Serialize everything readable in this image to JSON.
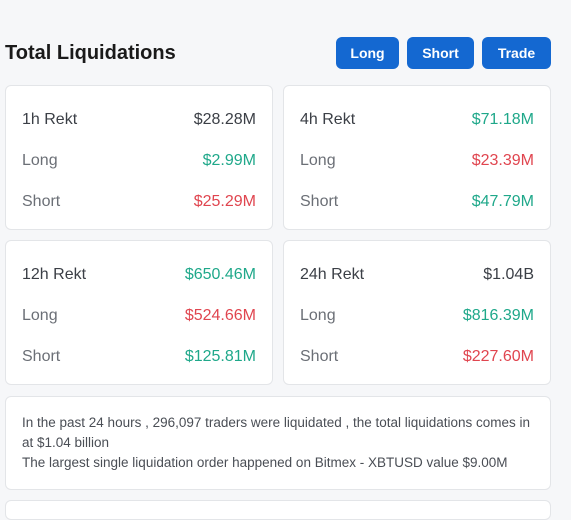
{
  "header": {
    "title": "Total Liquidations",
    "buttons": {
      "long": "Long",
      "short": "Short",
      "trade": "Trade"
    }
  },
  "cards": {
    "h1": {
      "title": "1h Rekt",
      "total": "$28.28M",
      "long_label": "Long",
      "long": "$2.99M",
      "short_label": "Short",
      "short": "$25.29M"
    },
    "h4": {
      "title": "4h Rekt",
      "total": "$71.18M",
      "long_label": "Long",
      "long": "$23.39M",
      "short_label": "Short",
      "short": "$47.79M"
    },
    "h12": {
      "title": "12h Rekt",
      "total": "$650.46M",
      "long_label": "Long",
      "long": "$524.66M",
      "short_label": "Short",
      "short": "$125.81M"
    },
    "h24": {
      "title": "24h Rekt",
      "total": "$1.04B",
      "long_label": "Long",
      "long": "$816.39M",
      "short_label": "Short",
      "short": "$227.60M"
    }
  },
  "summary": {
    "line1": "In the past 24 hours , 296,097 traders were liquidated , the total liquidations comes in at $1.04 billion",
    "line2": "The largest single liquidation order happened on Bitmex - XBTUSD value $9.00M"
  },
  "colors": {
    "accent": "#1468d1",
    "positive": "#1fa88a",
    "negative": "#e0454f",
    "background": "#f6f7f9"
  }
}
